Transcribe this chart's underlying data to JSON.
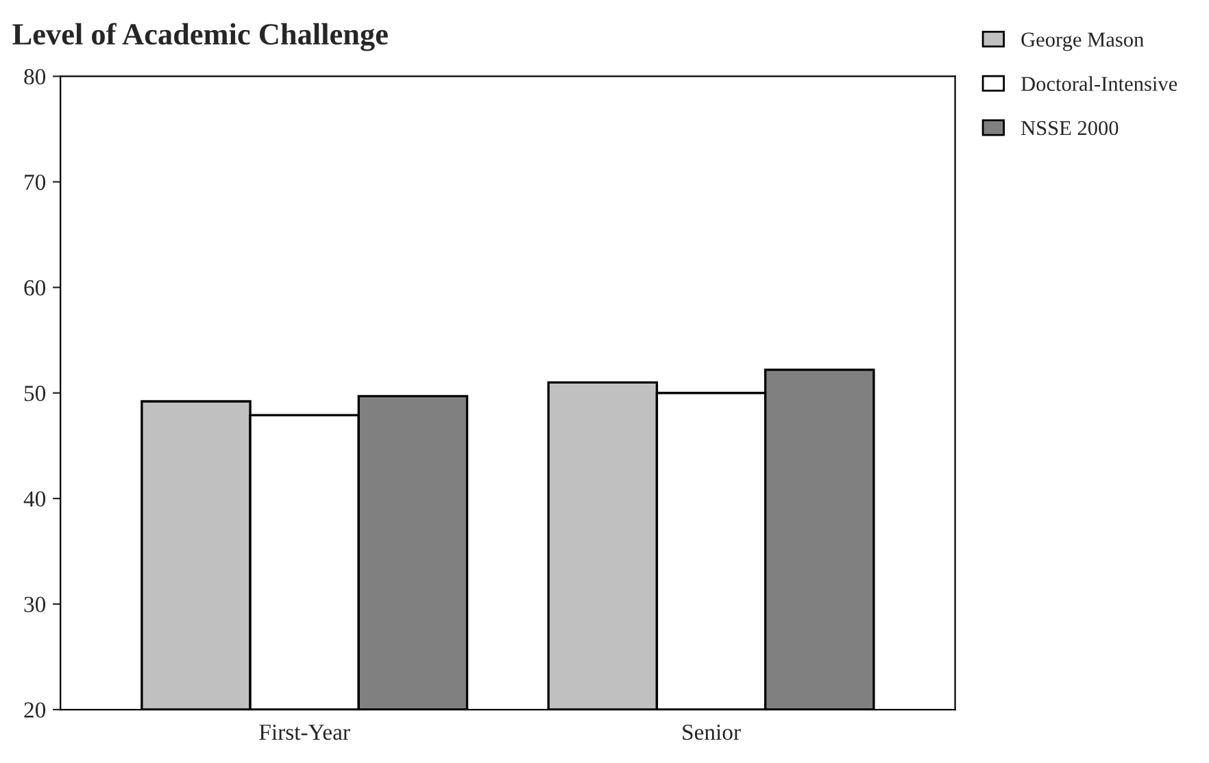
{
  "chart_data": {
    "type": "bar",
    "title": "Level of Academic Challenge",
    "categories": [
      "First-Year",
      "Senior"
    ],
    "series": [
      {
        "name": "George Mason",
        "color": "#c0c0c0",
        "values": [
          49.2,
          51.0
        ]
      },
      {
        "name": "Doctoral-Intensive",
        "color": "#ffffff",
        "values": [
          47.9,
          50.0
        ]
      },
      {
        "name": "NSSE 2000",
        "color": "#808080",
        "values": [
          49.7,
          52.2
        ]
      }
    ],
    "ylim": [
      20,
      80
    ],
    "yticks": [
      20,
      30,
      40,
      50,
      60,
      70,
      80
    ],
    "grid": false,
    "legend": "top right"
  }
}
